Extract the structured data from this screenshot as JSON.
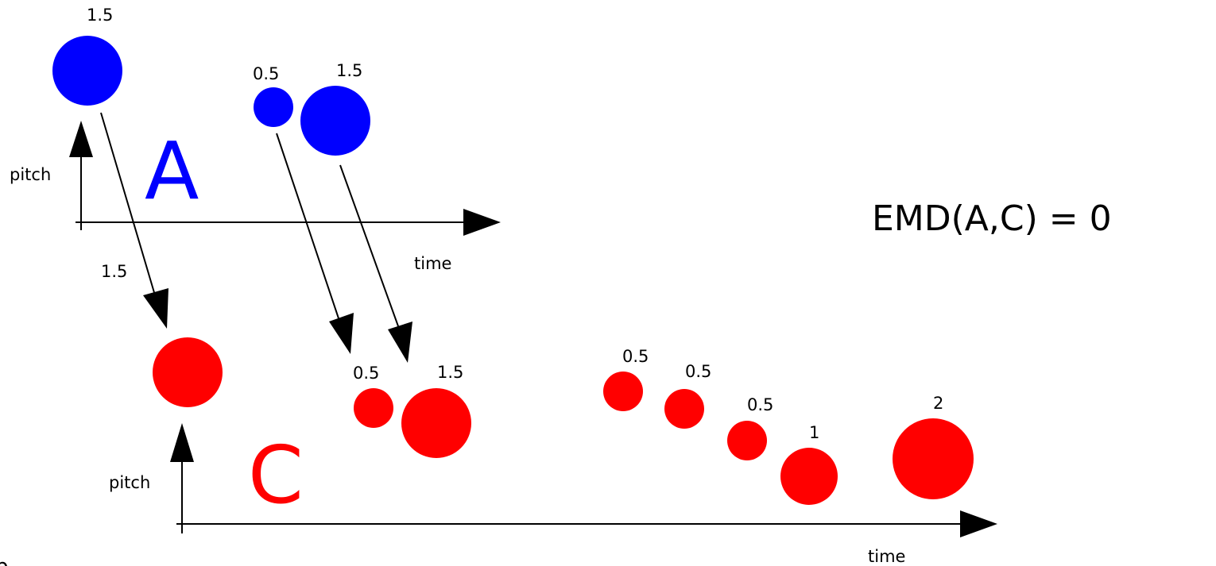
{
  "colors": {
    "set_a": "#0000ff",
    "set_c": "#ff0000",
    "ink": "#000000"
  },
  "diagram": {
    "set_a_label": "A",
    "set_c_label": "C",
    "axis_a": {
      "x_label": "time",
      "y_label": "pitch"
    },
    "axis_c": {
      "x_label": "time",
      "y_label": "pitch"
    },
    "emd_text": "EMD(A,C) = 0",
    "a_notes": [
      {
        "weight_label": "1.5"
      },
      {
        "weight_label": "0.5"
      },
      {
        "weight_label": "1.5"
      }
    ],
    "c_notes": [
      {
        "weight_label": ""
      },
      {
        "weight_label": "0.5"
      },
      {
        "weight_label": "1.5"
      },
      {
        "weight_label": "0.5"
      },
      {
        "weight_label": "0.5"
      },
      {
        "weight_label": "0.5"
      },
      {
        "weight_label": "1"
      },
      {
        "weight_label": "2"
      }
    ],
    "flows": [
      {
        "amount_label": "1.5"
      },
      {
        "amount_label": ""
      },
      {
        "amount_label": ""
      }
    ],
    "edge_glyph": "p"
  }
}
